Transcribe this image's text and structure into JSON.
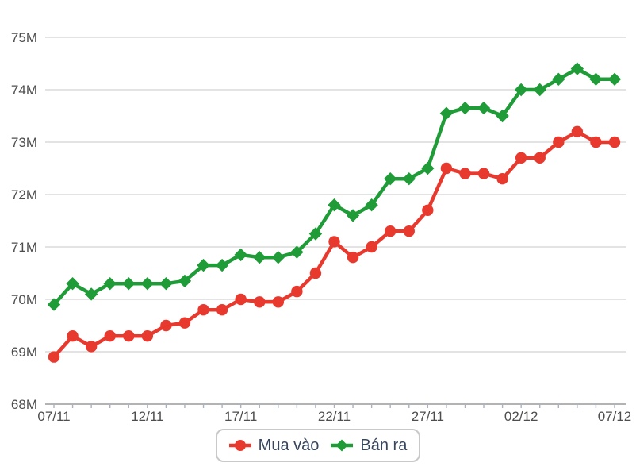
{
  "chart_data": {
    "type": "line",
    "title": "",
    "xlabel": "",
    "ylabel": "",
    "n_points": 31,
    "x_tick_labels": [
      "07/11",
      "12/11",
      "17/11",
      "22/11",
      "27/11",
      "02/12",
      "07/12"
    ],
    "x_tick_positions": [
      0,
      5,
      10,
      15,
      20,
      25,
      30
    ],
    "y_tick_labels": [
      "68M",
      "69M",
      "70M",
      "71M",
      "72M",
      "73M",
      "74M",
      "75M"
    ],
    "ylim": [
      68,
      75
    ],
    "grid": "horizontal",
    "legend_position": "bottom-center",
    "series": [
      {
        "name": "Mua vào",
        "id": "mua-vao",
        "color": "#e8392e",
        "marker": "circle",
        "values": [
          68.9,
          69.3,
          69.1,
          69.3,
          69.3,
          69.3,
          69.5,
          69.55,
          69.8,
          69.8,
          70.0,
          69.95,
          69.95,
          70.15,
          70.5,
          71.1,
          70.8,
          71.0,
          71.3,
          71.3,
          71.7,
          72.5,
          72.4,
          72.4,
          72.3,
          72.7,
          72.7,
          73.0,
          73.2,
          73.0,
          73.0
        ]
      },
      {
        "name": "Bán ra",
        "id": "ban-ra",
        "color": "#1f9b38",
        "marker": "diamond",
        "values": [
          69.9,
          70.3,
          70.1,
          70.3,
          70.3,
          70.3,
          70.3,
          70.35,
          70.65,
          70.65,
          70.85,
          70.8,
          70.8,
          70.9,
          71.25,
          71.8,
          71.6,
          71.8,
          72.3,
          72.3,
          72.5,
          73.55,
          73.65,
          73.65,
          73.5,
          74.0,
          74.0,
          74.2,
          74.4,
          74.2,
          74.2
        ]
      }
    ]
  },
  "legend": {
    "items": [
      {
        "label": "Mua vào"
      },
      {
        "label": "Bán ra"
      }
    ]
  },
  "colors": {
    "background": "#ffffff",
    "gridline": "#d2d2d2",
    "axis_line": "#9a9a9a",
    "tick": "#a9b2c2",
    "axis_label": "#4d4d4d",
    "legend_text": "#37465e",
    "legend_border": "#c9c9c9"
  },
  "layout_labels": {
    "chart_name": "gold-price-chart"
  }
}
